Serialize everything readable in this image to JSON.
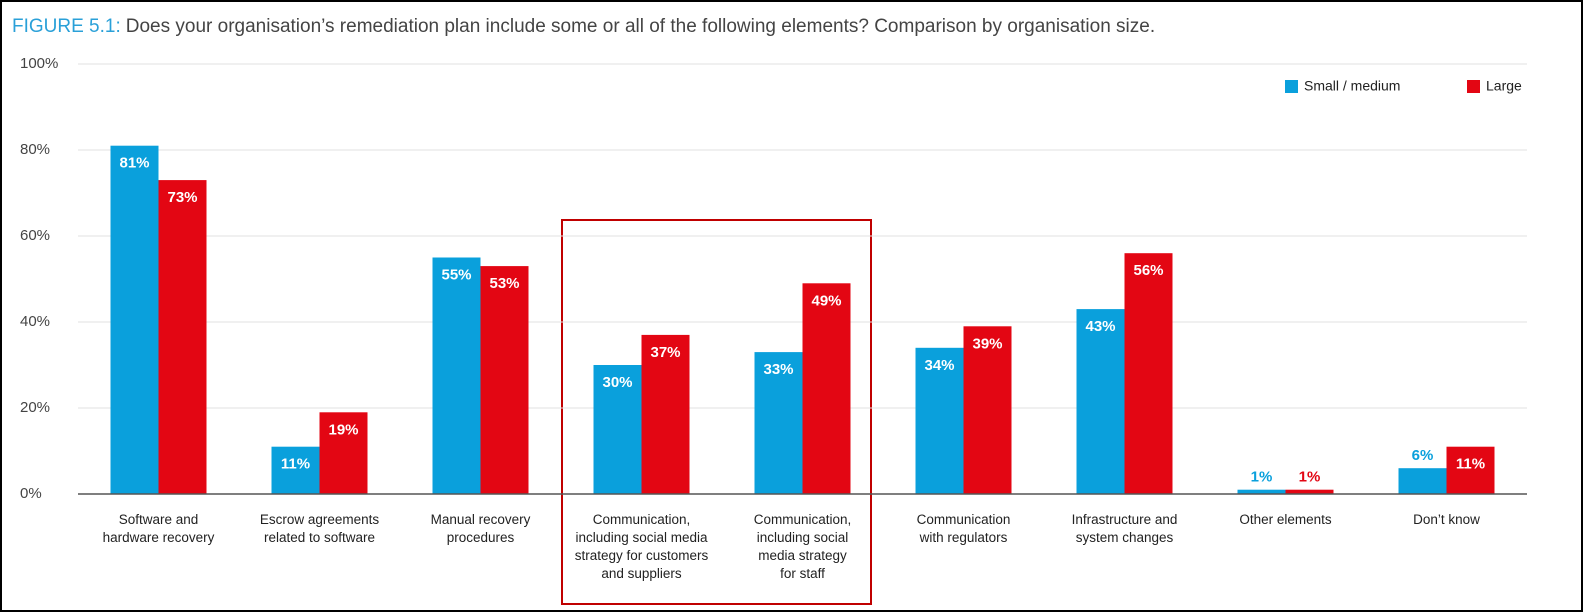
{
  "chart_data": {
    "type": "bar",
    "title_label": "FIGURE 5.1:",
    "title": "Does your organisation’s remediation plan include some or all of the following elements? Comparison by organisation size.",
    "categories": [
      [
        "Software and",
        "hardware recovery"
      ],
      [
        "Escrow agreements",
        "related to software"
      ],
      [
        "Manual recovery",
        "procedures"
      ],
      [
        "Communication,",
        "including social media",
        "strategy for customers",
        "and suppliers"
      ],
      [
        "Communication,",
        "including social",
        "media strategy",
        "for staff"
      ],
      [
        "Communication",
        "with regulators"
      ],
      [
        "Infrastructure and",
        "system changes"
      ],
      [
        "Other elements"
      ],
      [
        "Don’t know"
      ]
    ],
    "series": [
      {
        "name": "Small / medium",
        "color": "#0aa0dc",
        "values": [
          81,
          11,
          55,
          30,
          33,
          34,
          43,
          1,
          6
        ],
        "value_labels": [
          "81%",
          "11%",
          "55%",
          "30%",
          "33%",
          "34%",
          "43%",
          "1%",
          "6%"
        ]
      },
      {
        "name": "Large",
        "color": "#e30613",
        "values": [
          73,
          19,
          53,
          37,
          49,
          39,
          56,
          1,
          11
        ],
        "value_labels": [
          "73%",
          "19%",
          "53%",
          "37%",
          "49%",
          "39%",
          "56%",
          "1%",
          "11%"
        ]
      }
    ],
    "ylim": [
      0,
      100
    ],
    "yticks": [
      {
        "value": 0,
        "label": "0%"
      },
      {
        "value": 20,
        "label": "20%"
      },
      {
        "value": 40,
        "label": "40%"
      },
      {
        "value": 60,
        "label": "60%"
      },
      {
        "value": 80,
        "label": "80%"
      },
      {
        "value": 100,
        "label": "100%"
      }
    ],
    "grid": true,
    "legend": "top-right"
  }
}
